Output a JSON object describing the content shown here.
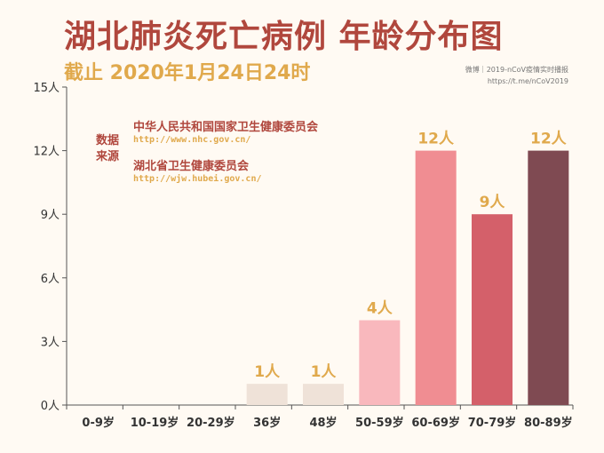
{
  "header": {
    "title": "湖北肺炎死亡病例 年龄分布图",
    "subtitle": "截止 2020年1月24日24时",
    "credit_line1": "微博｜2019-nCoV疫情实时播报",
    "credit_line2": "https://t.me/nCoV2019"
  },
  "source": {
    "label": "数据\n来源",
    "label_line1": "数据",
    "label_line2": "来源",
    "entries": [
      {
        "name": "中华人民共和国国家卫生健康委员会",
        "url": "http://www.nhc.gov.cn/"
      },
      {
        "name": "湖北省卫生健康委员会",
        "url": "http://wjw.hubei.gov.cn/"
      }
    ]
  },
  "colors": {
    "title": "#b0473d",
    "accent": "#e0a94c",
    "bars": [
      "#f0e4da",
      "#f0e4da",
      "#f0e4da",
      "#efe2d8",
      "#efe2d8",
      "#f9b8bd",
      "#f08d92",
      "#d4606a",
      "#7f4a52"
    ]
  },
  "chart_data": {
    "type": "bar",
    "categories": [
      "0-9岁",
      "10-19岁",
      "20-29岁",
      "36岁",
      "48岁",
      "50-59岁",
      "60-69岁",
      "70-79岁",
      "80-89岁"
    ],
    "values": [
      0,
      0,
      0,
      1,
      1,
      4,
      12,
      9,
      12
    ],
    "value_labels": [
      "",
      "",
      "",
      "1人",
      "1人",
      "4人",
      "12人",
      "9人",
      "12人"
    ],
    "yticks": [
      "0人",
      "3人",
      "6人",
      "9人",
      "12人",
      "15人"
    ],
    "ytick_values": [
      0,
      3,
      6,
      9,
      12,
      15
    ],
    "ylim": [
      0,
      15
    ],
    "grid": false,
    "title": "湖北肺炎死亡病例 年龄分布图"
  }
}
